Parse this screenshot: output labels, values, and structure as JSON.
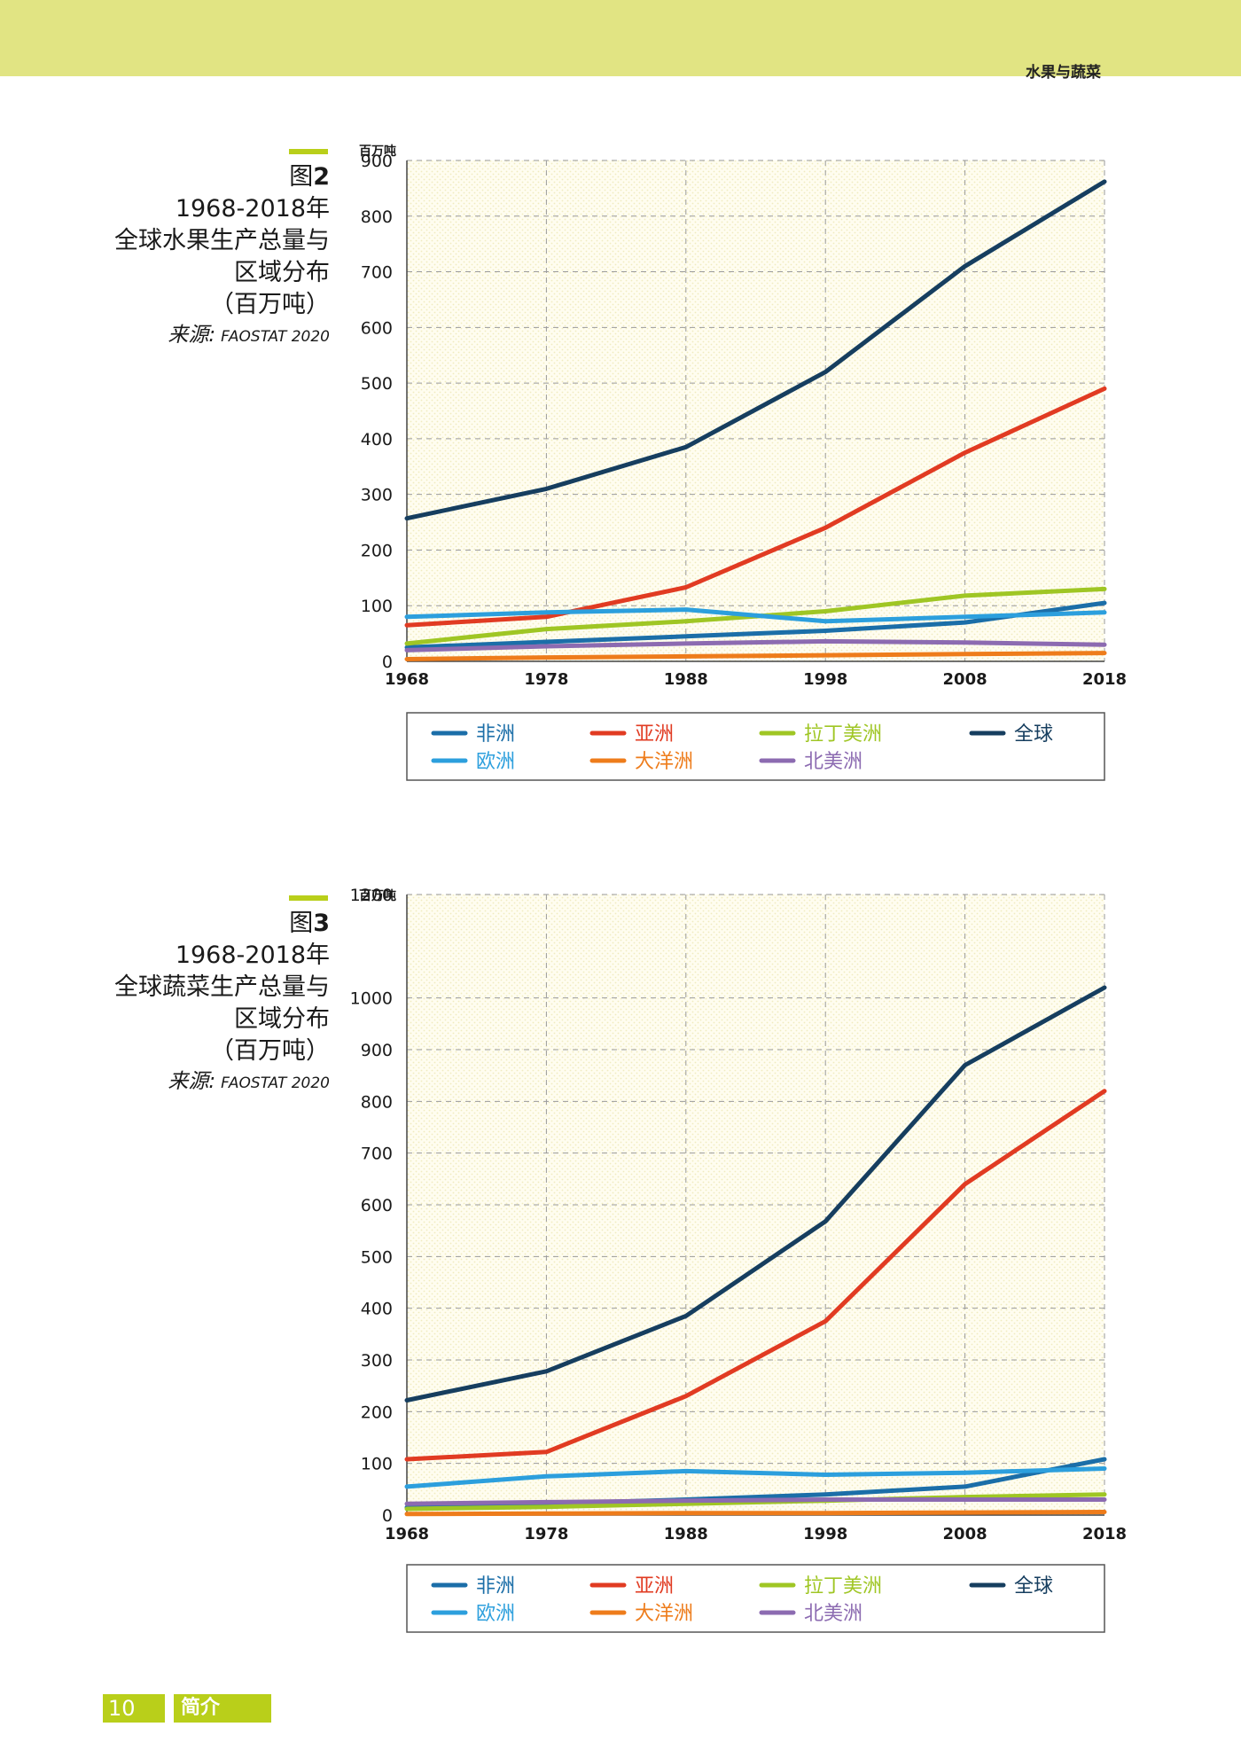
{
  "header": {
    "section_title": "水果与蔬菜"
  },
  "figures": [
    {
      "label_prefix": "图",
      "label_num": "2",
      "title_lines": [
        "1968-2018年",
        "全球水果生产总量与",
        "区域分布",
        "（百万吨）"
      ],
      "source_label": "来源:",
      "source_name": "FAOSTAT 2020"
    },
    {
      "label_prefix": "图",
      "label_num": "3",
      "title_lines": [
        "1968-2018年",
        "全球蔬菜生产总量与",
        "区域分布",
        "（百万吨）"
      ],
      "source_label": "来源:",
      "source_name": "FAOSTAT 2020"
    }
  ],
  "chart_data": [
    {
      "type": "line",
      "unit_label": "百万吨",
      "x": [
        "1968",
        "1978",
        "1988",
        "1998",
        "2008",
        "2018"
      ],
      "ylim": [
        0,
        900
      ],
      "yticks": [
        0,
        100,
        200,
        300,
        400,
        500,
        600,
        700,
        800,
        900
      ],
      "grid": true,
      "legend_position": "bottom",
      "series": [
        {
          "name": "非洲",
          "color": "#1b6ea8",
          "values": [
            25,
            35,
            45,
            55,
            70,
            105
          ]
        },
        {
          "name": "亚洲",
          "color": "#e13b22",
          "values": [
            65,
            80,
            133,
            240,
            375,
            490
          ]
        },
        {
          "name": "拉丁美洲",
          "color": "#9fc624",
          "values": [
            32,
            58,
            72,
            90,
            118,
            130
          ]
        },
        {
          "name": "全球",
          "color": "#163e5f",
          "values": [
            257,
            310,
            385,
            520,
            710,
            862
          ]
        },
        {
          "name": "欧洲",
          "color": "#2c9fdd",
          "values": [
            80,
            88,
            93,
            72,
            80,
            88
          ]
        },
        {
          "name": "大洋洲",
          "color": "#ee7c1b",
          "values": [
            4,
            7,
            9,
            11,
            13,
            15
          ]
        },
        {
          "name": "北美洲",
          "color": "#8c6bb1",
          "values": [
            20,
            27,
            32,
            36,
            34,
            30
          ]
        }
      ]
    },
    {
      "type": "line",
      "unit_label": "百万吨",
      "x": [
        "1968",
        "1978",
        "1988",
        "1998",
        "2008",
        "2018"
      ],
      "ylim": [
        0,
        1200
      ],
      "yticks": [
        0,
        100,
        200,
        300,
        400,
        500,
        600,
        700,
        800,
        900,
        1000,
        1200
      ],
      "grid": true,
      "legend_position": "bottom",
      "series": [
        {
          "name": "非洲",
          "color": "#1b6ea8",
          "values": [
            15,
            22,
            30,
            40,
            55,
            108
          ]
        },
        {
          "name": "亚洲",
          "color": "#e13b22",
          "values": [
            108,
            122,
            230,
            375,
            640,
            820
          ]
        },
        {
          "name": "拉丁美洲",
          "color": "#9fc624",
          "values": [
            12,
            16,
            22,
            28,
            35,
            40
          ]
        },
        {
          "name": "全球",
          "color": "#163e5f",
          "values": [
            222,
            278,
            385,
            568,
            870,
            1020
          ]
        },
        {
          "name": "欧洲",
          "color": "#2c9fdd",
          "values": [
            55,
            75,
            85,
            78,
            82,
            90
          ]
        },
        {
          "name": "大洋洲",
          "color": "#ee7c1b",
          "values": [
            2,
            3,
            4,
            4,
            5,
            6
          ]
        },
        {
          "name": "北美洲",
          "color": "#8c6bb1",
          "values": [
            22,
            25,
            28,
            30,
            30,
            30
          ]
        }
      ]
    }
  ],
  "footer": {
    "page_number": "10",
    "section": "简介"
  }
}
